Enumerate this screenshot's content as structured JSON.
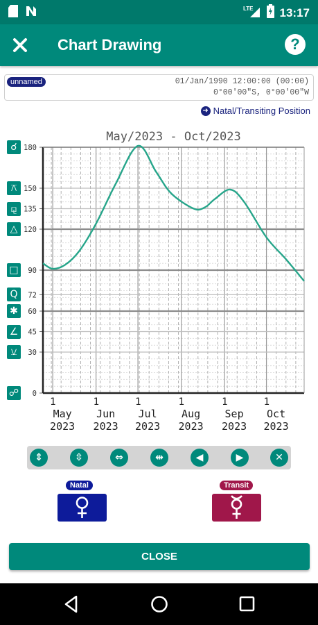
{
  "status_bar": {
    "time": "13:17",
    "icons": [
      "sd-card-icon",
      "n-notification-icon",
      "lte-signal-icon",
      "battery-charging-icon"
    ],
    "network": "LTE"
  },
  "app_bar": {
    "title": "Chart Drawing",
    "close_icon": "close-icon",
    "help_icon": "help-icon",
    "help_glyph": "?"
  },
  "chart_info": {
    "name_badge": "unnamed",
    "datetime": "01/Jan/1990 12:00:00 (00:00)",
    "coordinates": "0°00'00\"S, 0°00'00\"W"
  },
  "natal_link": "Natal/Transiting Position",
  "colors": {
    "accent": "#00897b",
    "status_bar": "#00796b",
    "curve": "#26a58a",
    "natal": "#0d1b9a",
    "transit": "#a0174a"
  },
  "aspect_icons": [
    {
      "name": "conjunction-icon",
      "symbol": "☌",
      "at": 180
    },
    {
      "name": "quincunx-icon",
      "symbol": "⚻",
      "at": 150
    },
    {
      "name": "sesquiquadrate-icon",
      "symbol": "⚼",
      "at": 135
    },
    {
      "name": "trine-icon",
      "symbol": "△",
      "at": 120
    },
    {
      "name": "square-icon",
      "symbol": "□",
      "at": 90
    },
    {
      "name": "quintile-icon",
      "symbol": "Q",
      "at": 72
    },
    {
      "name": "sextile-icon",
      "symbol": "✱",
      "at": 60
    },
    {
      "name": "semisquare-icon",
      "symbol": "∠",
      "at": 45
    },
    {
      "name": "semisextile-icon",
      "symbol": "⚺",
      "at": 30
    },
    {
      "name": "opposition-icon",
      "symbol": "☍",
      "at": 0
    }
  ],
  "chart_data": {
    "type": "line",
    "title": "May/2023 - Oct/2023",
    "ylim": [
      0,
      180
    ],
    "y_ticks": [
      0,
      30,
      45,
      60,
      72,
      90,
      120,
      135,
      150,
      180
    ],
    "y_major_lines": [
      60,
      90,
      120
    ],
    "x_ticks": [
      {
        "day": "1",
        "month": "May",
        "year": "2023"
      },
      {
        "day": "1",
        "month": "Jun",
        "year": "2023"
      },
      {
        "day": "1",
        "month": "Jul",
        "year": "2023"
      },
      {
        "day": "1",
        "month": "Aug",
        "year": "2023"
      },
      {
        "day": "1",
        "month": "Sep",
        "year": "2023"
      },
      {
        "day": "1",
        "month": "Oct",
        "year": "2023"
      }
    ],
    "x_range": [
      "2023-04-24",
      "2023-10-28"
    ],
    "grid": true,
    "series": [
      {
        "x": [
          "2023-04-24",
          "2023-05-01",
          "2023-05-10",
          "2023-05-20",
          "2023-06-01",
          "2023-06-15",
          "2023-07-01",
          "2023-07-14",
          "2023-07-25",
          "2023-08-10",
          "2023-08-18",
          "2023-08-25",
          "2023-09-05",
          "2023-09-15",
          "2023-10-01",
          "2023-10-15",
          "2023-10-28"
        ],
        "values": [
          95,
          91,
          94,
          104,
          124,
          153,
          181,
          162,
          146,
          135,
          136,
          142,
          149,
          140,
          114,
          98,
          82
        ]
      }
    ]
  },
  "toolbar": [
    {
      "name": "zoom-in-vertical-button",
      "icon": "expand-vertical-icon",
      "glyph": "⇕"
    },
    {
      "name": "zoom-out-vertical-button",
      "icon": "compress-vertical-icon",
      "glyph": "⇳"
    },
    {
      "name": "zoom-in-horizontal-button",
      "icon": "expand-horizontal-icon",
      "glyph": "⇔"
    },
    {
      "name": "zoom-out-horizontal-button",
      "icon": "compress-horizontal-icon",
      "glyph": "⇹"
    },
    {
      "name": "scroll-left-button",
      "icon": "arrow-left-icon",
      "glyph": "◀"
    },
    {
      "name": "scroll-right-button",
      "icon": "arrow-right-icon",
      "glyph": "▶"
    },
    {
      "name": "reset-button",
      "icon": "close-circle-icon",
      "glyph": "✕"
    }
  ],
  "natal": {
    "label": "Natal",
    "planet": "Venus",
    "glyph": "♀"
  },
  "transit": {
    "label": "Transit",
    "planet": "Mercury",
    "glyph": "☿"
  },
  "close_label": "CLOSE",
  "nav_icons": [
    "back-icon",
    "home-icon",
    "recents-icon"
  ]
}
